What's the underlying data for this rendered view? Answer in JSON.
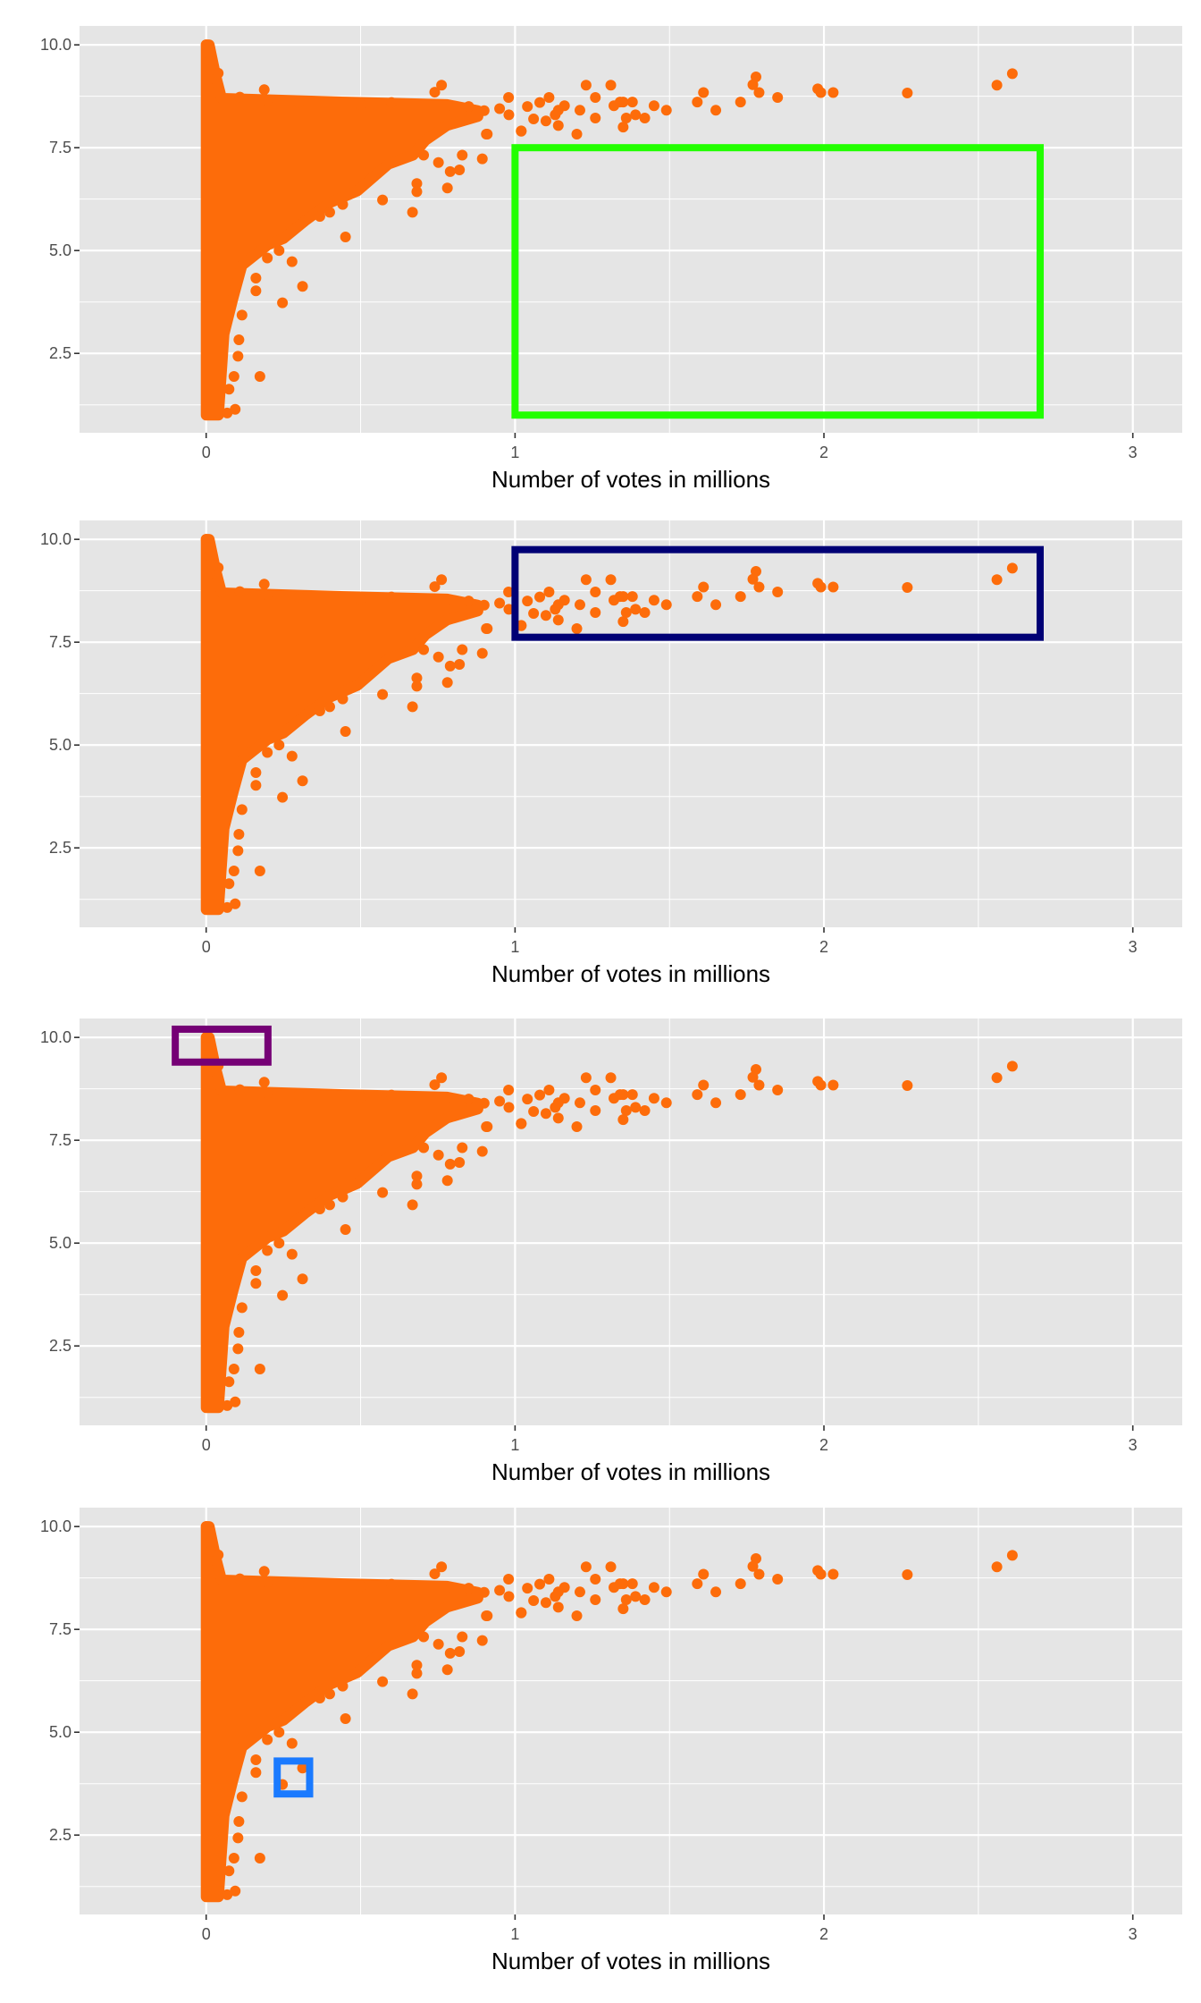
{
  "chart_data": [
    {
      "type": "scatter",
      "panel": 1,
      "xlabel": "Number of votes in millions",
      "ylabel": "",
      "highlight": {
        "color": "#22ff00",
        "x": [
          1.0,
          2.7
        ],
        "y": [
          1.0,
          7.5
        ]
      }
    },
    {
      "type": "scatter",
      "panel": 2,
      "xlabel": "Number of votes in millions",
      "ylabel": "",
      "highlight": {
        "color": "#000075",
        "x": [
          1.0,
          2.7
        ],
        "y": [
          7.62,
          9.75
        ]
      }
    },
    {
      "type": "scatter",
      "panel": 3,
      "xlabel": "Number of votes in millions",
      "ylabel": "",
      "highlight": {
        "color": "#750075",
        "x": [
          -0.1,
          0.2
        ],
        "y": [
          9.4,
          10.2
        ]
      }
    },
    {
      "type": "scatter",
      "panel": 4,
      "xlabel": "Number of votes in millions",
      "ylabel": "",
      "highlight": {
        "color": "#1a7aff",
        "x": [
          0.23,
          0.335
        ],
        "y": [
          3.5,
          4.3
        ]
      }
    }
  ],
  "shared": {
    "xlim": [
      -0.41,
      3.16
    ],
    "ylim": [
      0.57,
      10.46
    ],
    "x_ticks": [
      0,
      1,
      2,
      3
    ],
    "x_tick_labels": [
      "0",
      "1",
      "2",
      "3"
    ],
    "y_ticks": [
      2.5,
      5.0,
      7.5,
      10.0
    ],
    "y_tick_labels": [
      "2.5",
      "5.0",
      "7.5",
      "10.0"
    ],
    "grid": true,
    "point_color": "#fd6c0a",
    "panel_background": "#e5e5e5",
    "dense_cluster_outline": [
      [
        0,
        1
      ],
      [
        0.04,
        1
      ],
      [
        0.058,
        2.97
      ],
      [
        0.087,
        3.84
      ],
      [
        0.116,
        4.64
      ],
      [
        0.2,
        5.14
      ],
      [
        0.25,
        5.29
      ],
      [
        0.32,
        5.72
      ],
      [
        0.4,
        6.16
      ],
      [
        0.49,
        6.45
      ],
      [
        0.59,
        7.1
      ],
      [
        0.67,
        7.32
      ],
      [
        0.71,
        7.68
      ],
      [
        0.78,
        8.04
      ],
      [
        0.88,
        8.26
      ],
      [
        0.88,
        8.4
      ],
      [
        0.78,
        8.55
      ],
      [
        0.4,
        8.62
      ],
      [
        0.05,
        8.7
      ],
      [
        0.03,
        9.28
      ],
      [
        0.01,
        10
      ],
      [
        0,
        10
      ]
    ],
    "points": [
      [
        0,
        10
      ],
      [
        0.005,
        9.8
      ],
      [
        0.01,
        9.6
      ],
      [
        0.015,
        9.4
      ],
      [
        0.039,
        9.31
      ],
      [
        0.188,
        8.91
      ],
      [
        0.109,
        8.73
      ],
      [
        0.762,
        9.02
      ],
      [
        0.74,
        8.85
      ],
      [
        0.979,
        8.72
      ],
      [
        0.907,
        7.83
      ],
      [
        0.894,
        7.23
      ],
      [
        0.781,
        6.52
      ],
      [
        0.682,
        6.63
      ],
      [
        0.682,
        6.43
      ],
      [
        0.668,
        5.93
      ],
      [
        0.571,
        6.23
      ],
      [
        0.451,
        5.33
      ],
      [
        0.442,
        6.12
      ],
      [
        0.278,
        4.73
      ],
      [
        0.312,
        4.13
      ],
      [
        0.247,
        3.73
      ],
      [
        0.161,
        4.33
      ],
      [
        0.161,
        4.02
      ],
      [
        0.116,
        3.43
      ],
      [
        0.106,
        2.83
      ],
      [
        0.103,
        2.43
      ],
      [
        0.09,
        1.94
      ],
      [
        0.174,
        1.94
      ],
      [
        0.074,
        1.63
      ],
      [
        0.094,
        1.14
      ],
      [
        0.068,
        1.05
      ],
      [
        0.368,
        5.83
      ],
      [
        0.4,
        5.93
      ],
      [
        0.198,
        4.82
      ],
      [
        0.236,
        5.0
      ],
      [
        0.82,
        6.96
      ],
      [
        0.79,
        6.92
      ],
      [
        0.829,
        7.32
      ],
      [
        0.752,
        7.14
      ],
      [
        0.704,
        7.32
      ],
      [
        1.02,
        7.9
      ],
      [
        0.98,
        8.3
      ],
      [
        1.06,
        8.2
      ],
      [
        1.1,
        8.15
      ],
      [
        1.13,
        8.3
      ],
      [
        0.91,
        7.83
      ],
      [
        1.02,
        7.91
      ],
      [
        1.14,
        8.04
      ],
      [
        1.11,
        8.72
      ],
      [
        1.16,
        8.52
      ],
      [
        1.14,
        8.41
      ],
      [
        1.23,
        9.02
      ],
      [
        1.31,
        9.02
      ],
      [
        1.26,
        8.72
      ],
      [
        1.32,
        8.52
      ],
      [
        1.26,
        8.22
      ],
      [
        1.21,
        8.41
      ],
      [
        1.2,
        7.83
      ],
      [
        1.36,
        8.22
      ],
      [
        1.35,
        8.0
      ],
      [
        1.39,
        8.3
      ],
      [
        1.42,
        8.22
      ],
      [
        1.34,
        8.61
      ],
      [
        1.35,
        8.61
      ],
      [
        1.38,
        8.61
      ],
      [
        1.45,
        8.52
      ],
      [
        1.49,
        8.41
      ],
      [
        1.59,
        8.61
      ],
      [
        1.61,
        8.84
      ],
      [
        1.65,
        8.41
      ],
      [
        1.73,
        8.61
      ],
      [
        1.77,
        9.03
      ],
      [
        1.78,
        9.22
      ],
      [
        1.79,
        8.84
      ],
      [
        1.85,
        8.72
      ],
      [
        1.98,
        8.93
      ],
      [
        1.99,
        8.84
      ],
      [
        2.03,
        8.84
      ],
      [
        2.27,
        8.83
      ],
      [
        2.56,
        9.02
      ],
      [
        2.61,
        9.3
      ],
      [
        0.85,
        8.5
      ],
      [
        0.9,
        8.4
      ],
      [
        0.95,
        8.45
      ],
      [
        1.04,
        8.5
      ],
      [
        1.08,
        8.6
      ],
      [
        0.6,
        8.6
      ],
      [
        0.5,
        8.55
      ],
      [
        0.3,
        8.6
      ],
      [
        0.2,
        8.65
      ]
    ]
  }
}
